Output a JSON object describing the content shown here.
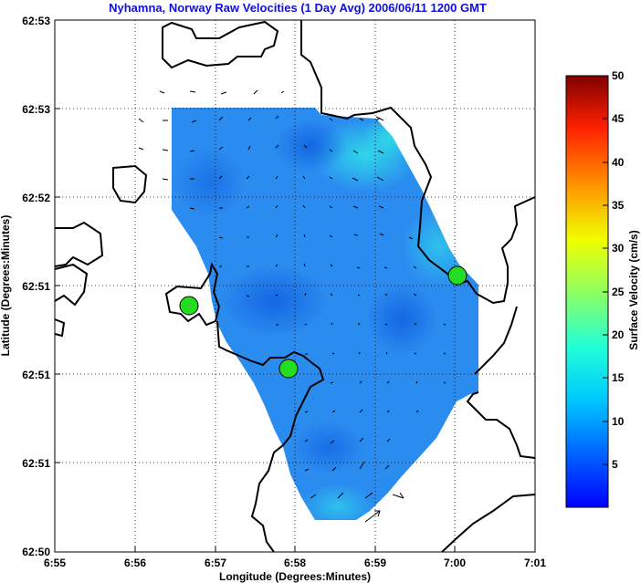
{
  "title": "Nyhamna, Norway Raw Velocities (1 Day Avg) 2006/06/11 1200 GMT",
  "xlabel": "Longitude (Degrees:Minutes)",
  "ylabel": "Latitude (Degrees:Minutes)",
  "colorbar": {
    "label": "Surface Velocity (cm/s)",
    "ticks": [
      "50",
      "45",
      "40",
      "35",
      "30",
      "25",
      "20",
      "15",
      "10",
      "5"
    ]
  },
  "chart_data": {
    "type": "heatmap",
    "x_ticks": [
      "6:55",
      "6:56",
      "6:57",
      "6:58",
      "6:59",
      "7:00",
      "7:01"
    ],
    "y_ticks": [
      "62:53",
      "62:53",
      "62:52",
      "62:51",
      "62:51",
      "62:51",
      "62:50"
    ],
    "grid": true,
    "colorbar_range": [
      0,
      50
    ],
    "dominant_velocity_range_cm_s": [
      3,
      12
    ],
    "sites": [
      "site-1",
      "site-2",
      "site-3"
    ]
  }
}
